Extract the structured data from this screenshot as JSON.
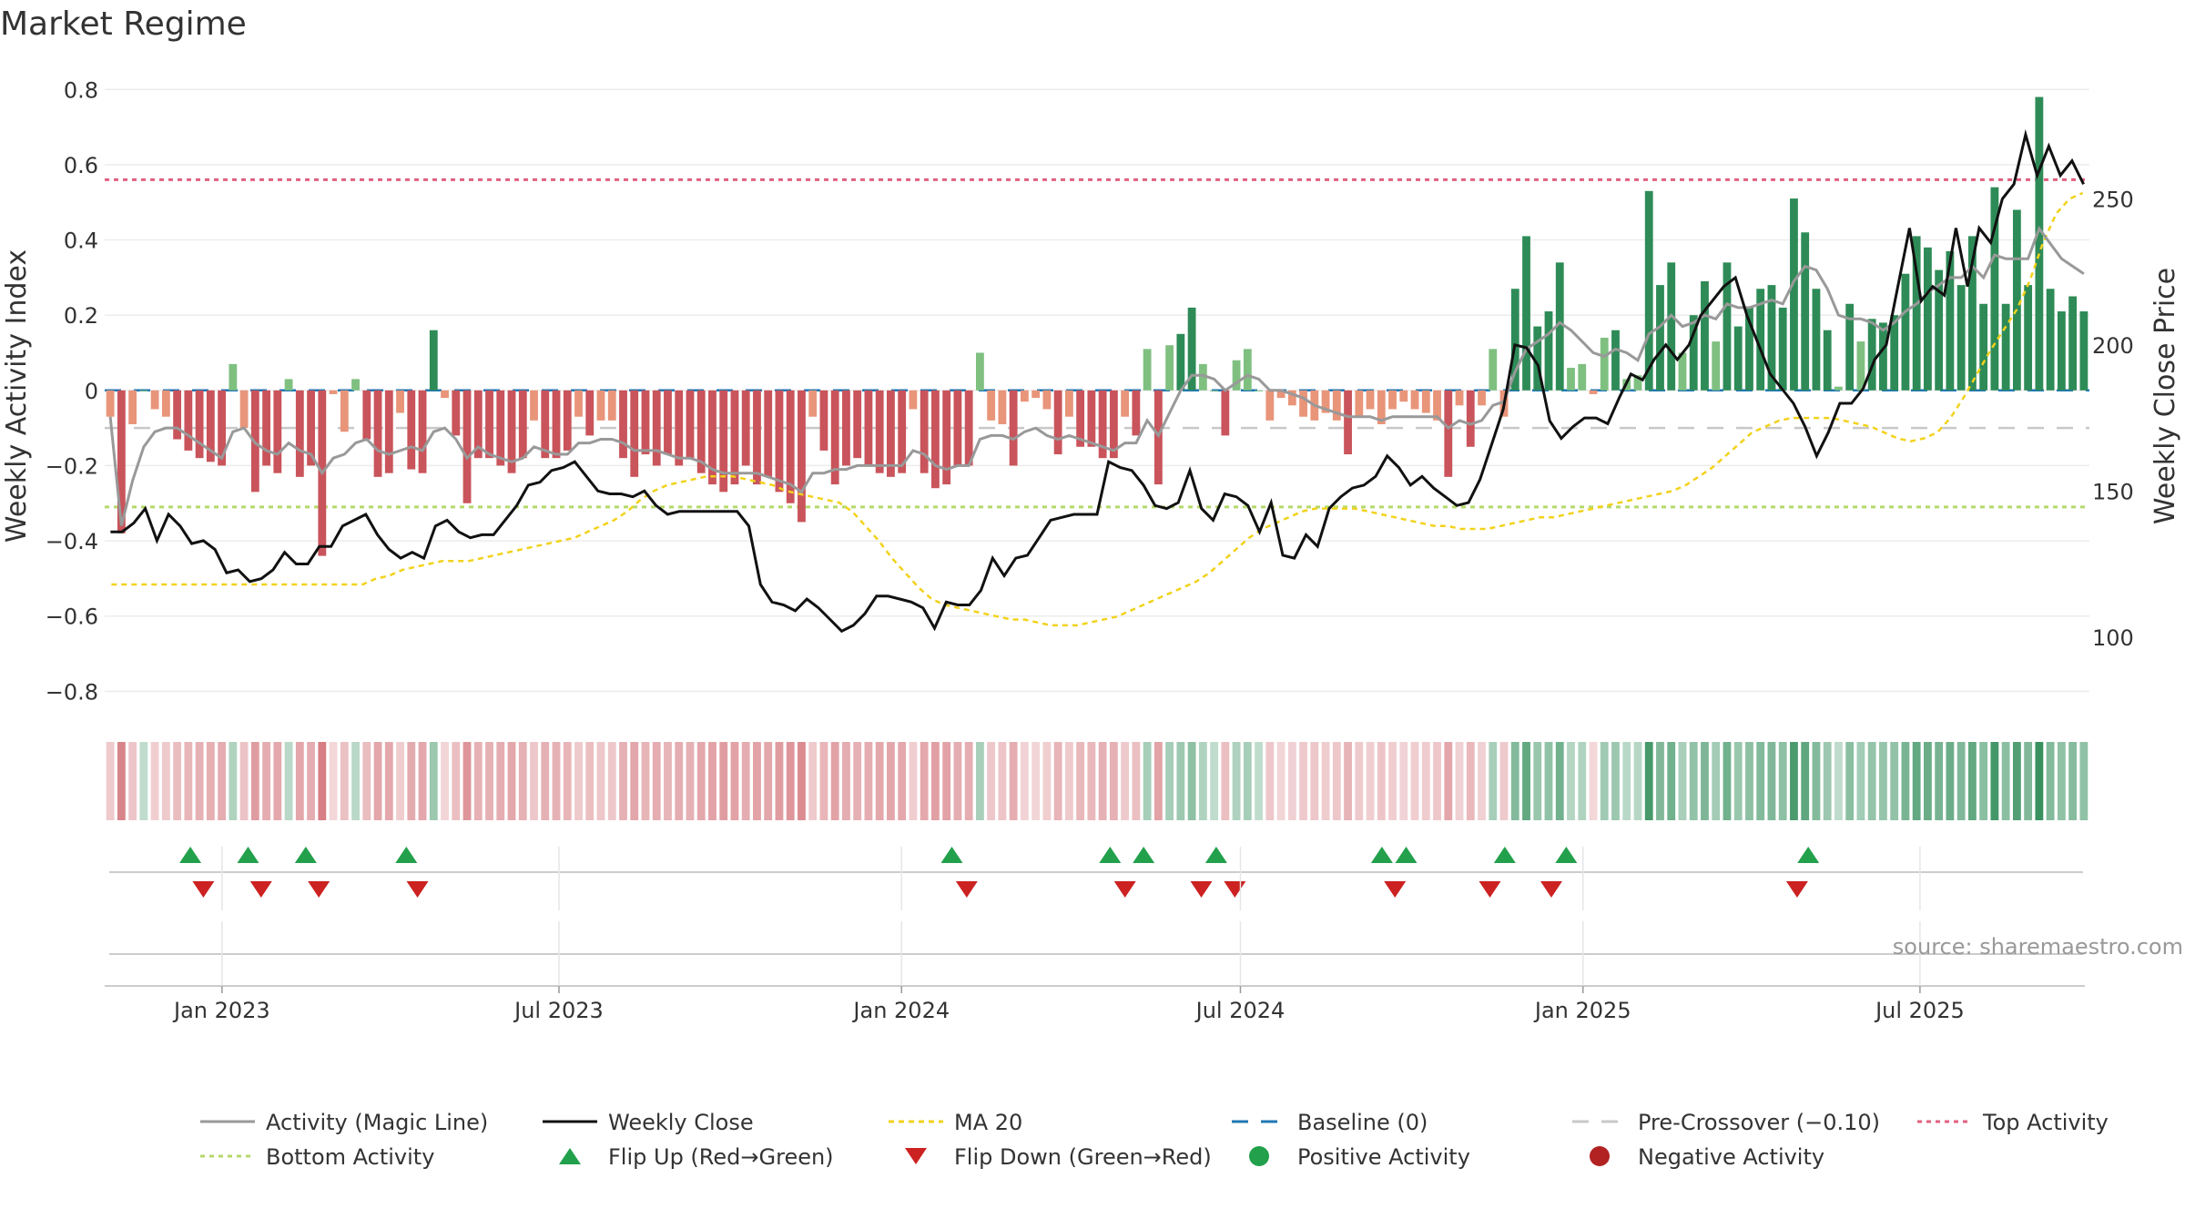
{
  "title": "Market Regime",
  "source": "source: sharemaestro.com",
  "colors": {
    "strong_green": "#2e8b57",
    "light_green": "#7fc080",
    "strong_red": "#c9545b",
    "light_red": "#e8957a",
    "magic_line": "#999999",
    "weekly_close": "#111111",
    "ma20": "#f2d21b",
    "baseline": "#1f77b4",
    "pre_crossover": "#c8c8c8",
    "top_activity": "#e06080",
    "bottom_activity": "#b5d96a",
    "flip_up": "#22a04b",
    "flip_down": "#cc2222"
  },
  "chart_data": {
    "type": "bar",
    "ylabel": "Weekly Activity Index",
    "ylabel_right": "Weekly Close Price",
    "ylim": [
      -0.85,
      0.82
    ],
    "ylim_right": [
      75,
      290
    ],
    "yticks": [
      "0.8",
      "0.6",
      "0.4",
      "0.2",
      "0",
      "−0.2",
      "−0.4",
      "−0.6",
      "−0.8"
    ],
    "yticks_right": [
      "250",
      "200",
      "150",
      "100"
    ],
    "xticks": [
      "Jan 2023",
      "Jul 2023",
      "Jan 2024",
      "Jul 2024",
      "Jan 2025",
      "Jul 2025"
    ],
    "x_range": [
      "2022-10-30",
      "2025-09-30"
    ],
    "xtick_dates": [
      "2023-01-01",
      "2023-07-01",
      "2024-01-01",
      "2024-07-01",
      "2025-01-01",
      "2025-07-01"
    ],
    "grid": true,
    "legend_position": "bottom",
    "reference_lines": {
      "baseline": 0,
      "pre_crossover": -0.1,
      "top_activity": 0.56,
      "bottom_activity": -0.31
    },
    "activity_index": [
      -0.07,
      -0.38,
      -0.09,
      0,
      -0.05,
      -0.07,
      -0.13,
      -0.16,
      -0.18,
      -0.19,
      -0.2,
      0.07,
      -0.1,
      -0.27,
      -0.2,
      -0.22,
      0.03,
      -0.23,
      -0.2,
      -0.44,
      -0.01,
      -0.11,
      0.03,
      -0.13,
      -0.23,
      -0.22,
      -0.06,
      -0.21,
      -0.22,
      0.16,
      -0.02,
      -0.12,
      -0.3,
      -0.18,
      -0.18,
      -0.2,
      -0.22,
      -0.18,
      -0.08,
      -0.18,
      -0.18,
      -0.16,
      -0.07,
      -0.12,
      -0.08,
      -0.08,
      -0.18,
      -0.23,
      -0.17,
      -0.2,
      -0.17,
      -0.2,
      -0.18,
      -0.22,
      -0.25,
      -0.27,
      -0.25,
      -0.2,
      -0.25,
      -0.23,
      -0.27,
      -0.3,
      -0.35,
      -0.07,
      -0.16,
      -0.25,
      -0.2,
      -0.18,
      -0.2,
      -0.22,
      -0.23,
      -0.22,
      -0.05,
      -0.22,
      -0.26,
      -0.25,
      -0.2,
      -0.2,
      0.1,
      -0.08,
      -0.09,
      -0.2,
      -0.03,
      -0.02,
      -0.05,
      -0.17,
      -0.07,
      -0.15,
      -0.15,
      -0.18,
      -0.18,
      -0.07,
      -0.12,
      0.11,
      -0.25,
      0.12,
      0.15,
      0.22,
      0.07,
      0,
      -0.12,
      0.08,
      0.11,
      0,
      -0.08,
      -0.02,
      -0.04,
      -0.07,
      -0.08,
      -0.06,
      -0.08,
      -0.17,
      -0.07,
      -0.05,
      -0.09,
      -0.05,
      -0.03,
      -0.05,
      -0.06,
      -0.08,
      -0.23,
      -0.04,
      -0.15,
      -0.04,
      0.11,
      -0.07,
      0.27,
      0.41,
      0.17,
      0.21,
      0.34,
      0.06,
      0.07,
      -0.01,
      0.14,
      0.16,
      0.03,
      0.04,
      0.53,
      0.28,
      0.34,
      0.1,
      0.2,
      0.29,
      0.13,
      0.34,
      0.17,
      0.22,
      0.27,
      0.28,
      0.22,
      0.51,
      0.42,
      0.27,
      0.16,
      0.01,
      0.23,
      0.13,
      0.19,
      0.18,
      0.2,
      0.31,
      0.41,
      0.38,
      0.32,
      0.37,
      0.28,
      0.41,
      0.23,
      0.54,
      0.23,
      0.48,
      0.28,
      0.78,
      0.27,
      0.21,
      0.25,
      0.21
    ],
    "magic_line": [
      -0.07,
      -0.36,
      -0.24,
      -0.15,
      -0.11,
      -0.1,
      -0.1,
      -0.12,
      -0.14,
      -0.16,
      -0.18,
      -0.11,
      -0.1,
      -0.14,
      -0.16,
      -0.17,
      -0.14,
      -0.16,
      -0.17,
      -0.22,
      -0.18,
      -0.17,
      -0.14,
      -0.13,
      -0.16,
      -0.17,
      -0.16,
      -0.15,
      -0.16,
      -0.11,
      -0.1,
      -0.13,
      -0.18,
      -0.15,
      -0.17,
      -0.18,
      -0.19,
      -0.18,
      -0.15,
      -0.16,
      -0.17,
      -0.17,
      -0.14,
      -0.14,
      -0.13,
      -0.13,
      -0.14,
      -0.16,
      -0.16,
      -0.16,
      -0.17,
      -0.18,
      -0.18,
      -0.19,
      -0.21,
      -0.22,
      -0.22,
      -0.22,
      -0.22,
      -0.23,
      -0.24,
      -0.25,
      -0.27,
      -0.22,
      -0.22,
      -0.21,
      -0.21,
      -0.2,
      -0.2,
      -0.2,
      -0.2,
      -0.2,
      -0.16,
      -0.17,
      -0.2,
      -0.21,
      -0.2,
      -0.2,
      -0.13,
      -0.12,
      -0.12,
      -0.13,
      -0.11,
      -0.1,
      -0.12,
      -0.13,
      -0.12,
      -0.13,
      -0.14,
      -0.15,
      -0.16,
      -0.14,
      -0.14,
      -0.08,
      -0.12,
      -0.06,
      0,
      0.04,
      0.04,
      0.03,
      0,
      0.02,
      0.04,
      0.03,
      0,
      0,
      -0.01,
      -0.02,
      -0.04,
      -0.05,
      -0.06,
      -0.07,
      -0.07,
      -0.07,
      -0.08,
      -0.07,
      -0.07,
      -0.07,
      -0.07,
      -0.07,
      -0.1,
      -0.08,
      -0.09,
      -0.08,
      -0.04,
      -0.03,
      0.05,
      0.11,
      0.13,
      0.15,
      0.18,
      0.16,
      0.13,
      0.1,
      0.09,
      0.11,
      0.1,
      0.08,
      0.15,
      0.17,
      0.2,
      0.17,
      0.18,
      0.2,
      0.19,
      0.23,
      0.22,
      0.22,
      0.23,
      0.24,
      0.23,
      0.29,
      0.33,
      0.32,
      0.27,
      0.2,
      0.19,
      0.19,
      0.18,
      0.16,
      0.18,
      0.21,
      0.23,
      0.26,
      0.28,
      0.3,
      0.3,
      0.33,
      0.3,
      0.36,
      0.35,
      0.35,
      0.35,
      0.43,
      0.39,
      0.35,
      0.33,
      0.31
    ],
    "weekly_close": [
      136,
      136,
      139,
      144,
      133,
      142,
      138,
      132,
      133,
      130,
      122,
      123,
      119,
      120,
      123,
      129,
      125,
      125,
      131,
      131,
      138,
      140,
      142,
      135,
      130,
      127,
      129,
      127,
      138,
      140,
      136,
      134,
      135,
      135,
      140,
      145,
      152,
      153,
      157,
      158,
      160,
      155,
      150,
      149,
      149,
      148,
      150,
      145,
      142,
      143,
      143,
      143,
      143,
      143,
      143,
      138,
      118,
      112,
      111,
      109,
      113,
      110,
      106,
      102,
      104,
      108,
      114,
      114,
      113,
      112,
      110,
      103,
      112,
      111,
      111,
      116,
      127,
      121,
      127,
      128,
      134,
      140,
      141,
      142,
      142,
      142,
      160,
      158,
      157,
      152,
      145,
      144,
      146,
      157,
      144,
      140,
      149,
      148,
      145,
      136,
      146,
      128,
      127,
      135,
      131,
      144,
      148,
      151,
      152,
      155,
      162,
      158,
      152,
      155,
      151,
      148,
      145,
      146,
      154,
      166,
      178,
      200,
      199,
      193,
      174,
      168,
      172,
      175,
      175,
      173,
      182,
      190,
      188,
      195,
      200,
      195,
      200,
      210,
      215,
      220,
      223,
      210,
      200,
      190,
      185,
      180,
      172,
      162,
      170,
      180,
      180,
      185,
      195,
      200,
      220,
      240,
      215,
      220,
      217,
      240,
      220,
      240,
      235,
      250,
      255,
      272,
      258,
      268,
      258,
      263,
      255
    ],
    "ma20": [
      118,
      118,
      118,
      118,
      118,
      118,
      118,
      118,
      118,
      118,
      118,
      118,
      118,
      118,
      118,
      118,
      118,
      118,
      118,
      118,
      120,
      121,
      123,
      124,
      125,
      126,
      126,
      126,
      127,
      128,
      129,
      130,
      131,
      132,
      133,
      134,
      136,
      138,
      140,
      143,
      147,
      150,
      152,
      153,
      154,
      155,
      155,
      155,
      154,
      153,
      152,
      150,
      149,
      148,
      147,
      146,
      143,
      138,
      133,
      127,
      122,
      117,
      113,
      111,
      110,
      109,
      108,
      107,
      106,
      106,
      105,
      104,
      104,
      104,
      105,
      106,
      107,
      109,
      111,
      113,
      115,
      117,
      119,
      122,
      126,
      130,
      134,
      137,
      139,
      141,
      143,
      144,
      144,
      144,
      144,
      143,
      142,
      141,
      140,
      139,
      138,
      138,
      137,
      137,
      137,
      138,
      139,
      140,
      141,
      141,
      142,
      143,
      144,
      145,
      146,
      147,
      148,
      149,
      150,
      152,
      155,
      158,
      162,
      166,
      170,
      172,
      174,
      175,
      175,
      175,
      175,
      174,
      173,
      172,
      170,
      168,
      167,
      168,
      170,
      175,
      182,
      190,
      198,
      205,
      212,
      222,
      235,
      245,
      250,
      252
    ],
    "flip_up_dates": [
      "2022-12-15",
      "2023-01-15",
      "2023-02-15",
      "2023-04-10",
      "2024-01-28",
      "2024-04-22",
      "2024-05-10",
      "2024-06-18",
      "2024-09-15",
      "2024-09-28",
      "2024-11-20",
      "2024-12-23",
      "2025-05-02"
    ],
    "flip_down_dates": [
      "2022-12-22",
      "2023-01-22",
      "2023-02-22",
      "2023-04-16",
      "2024-02-05",
      "2024-04-30",
      "2024-06-10",
      "2024-06-28",
      "2024-09-22",
      "2024-11-12",
      "2024-12-15",
      "2025-04-26"
    ],
    "legend": [
      {
        "key": "magic",
        "label": "Activity (Magic Line)"
      },
      {
        "key": "close",
        "label": "Weekly Close"
      },
      {
        "key": "ma20",
        "label": "MA 20"
      },
      {
        "key": "baseline",
        "label": "Baseline (0)"
      },
      {
        "key": "precross",
        "label": "Pre-Crossover (−0.10)"
      },
      {
        "key": "top",
        "label": "Top Activity"
      },
      {
        "key": "bottom",
        "label": "Bottom Activity"
      },
      {
        "key": "flipup",
        "label": "Flip Up (Red→Green)"
      },
      {
        "key": "flipdown",
        "label": "Flip Down (Green→Red)"
      },
      {
        "key": "pos",
        "label": "Positive Activity"
      },
      {
        "key": "neg",
        "label": "Negative Activity"
      }
    ]
  }
}
